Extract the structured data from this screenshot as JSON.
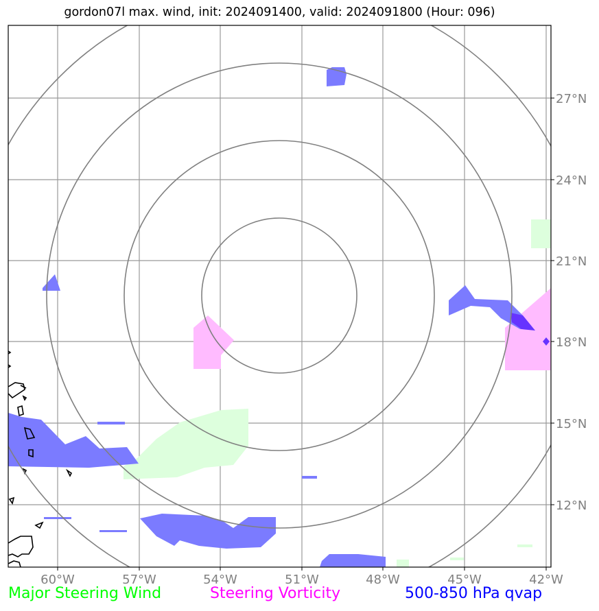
{
  "title": "gordon07l max. wind, init: 2024091400, valid: 2024091800 (Hour: 096)",
  "lon_labels": [
    "60°W",
    "57°W",
    "54°W",
    "51°W",
    "48°W",
    "45°W",
    "42°W"
  ],
  "lat_labels": [
    "27°N",
    "24°N",
    "21°N",
    "18°N",
    "15°N",
    "12°N"
  ],
  "legend": {
    "wind": {
      "label": "Major Steering Wind",
      "color": "#00ff00"
    },
    "vorticity": {
      "label": "Steering Vorticity",
      "color": "#ff00ff"
    },
    "qvap": {
      "label": "500-850 hPa qvap",
      "color": "#0000ff"
    }
  },
  "colors": {
    "grid": "#999999",
    "rings": "#808080",
    "wind_fill": "#ddffdd",
    "vorticity_fill": "#ffbbff",
    "qvap_fill": "#7b7bff",
    "storm_marker": "#6633ff"
  }
}
